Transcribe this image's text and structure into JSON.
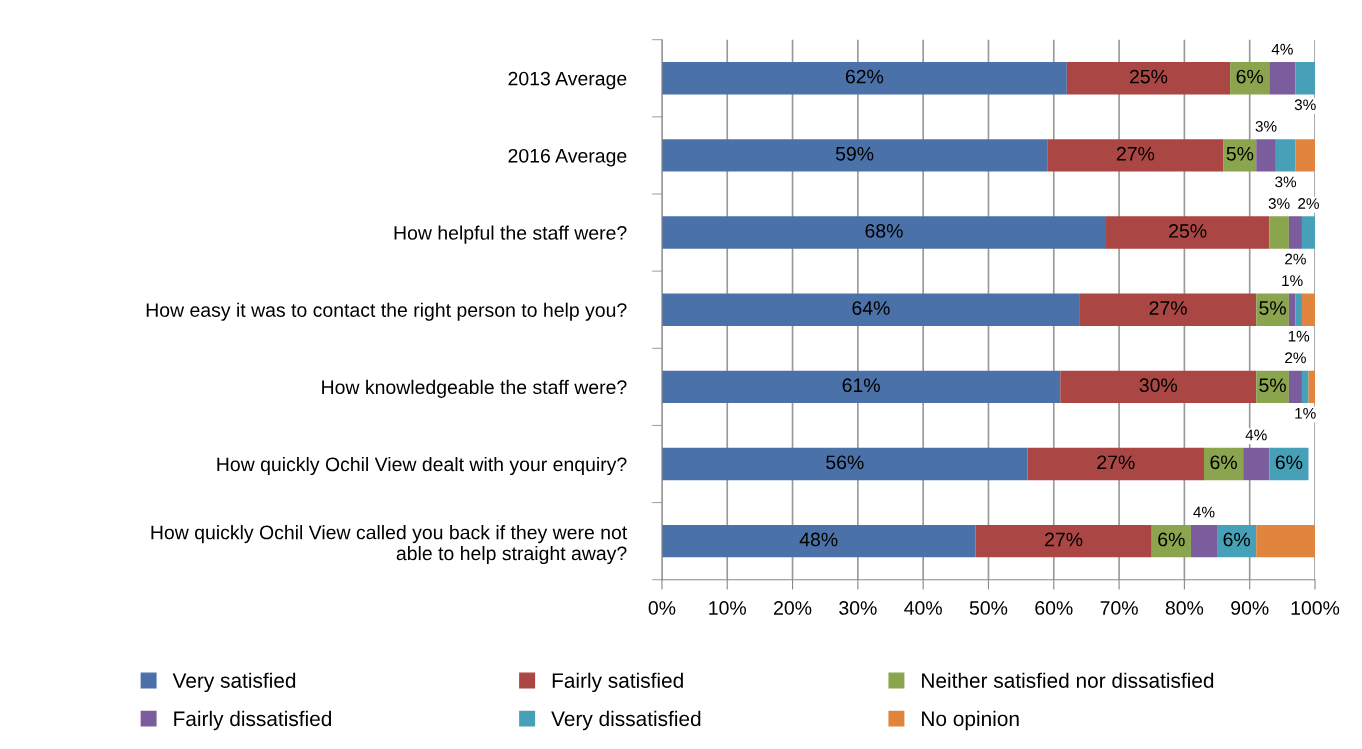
{
  "chart_data": {
    "type": "bar",
    "orientation": "horizontal",
    "stacked": true,
    "categories": [
      "2013 Average",
      "2016 Average",
      "How helpful the staff were?",
      "How easy it was to contact the right person to help you?",
      "How knowledgeable the staff were?",
      "How quickly Ochil View dealt with your enquiry?",
      "How quickly Ochil View called you back if they were not\nable to help straight away?"
    ],
    "series": [
      {
        "name": "Very satisfied",
        "color": "#4a72a8",
        "values": [
          62,
          59,
          68,
          64,
          61,
          56,
          48
        ],
        "value_labels": [
          "62%",
          "59%",
          "68%",
          "64%",
          "61%",
          "56%",
          "48%"
        ]
      },
      {
        "name": "Fairly satisfied",
        "color": "#aa4644",
        "values": [
          25,
          27,
          25,
          27,
          30,
          27,
          27
        ],
        "value_labels": [
          "25%",
          "27%",
          "25%",
          "27%",
          "30%",
          "27%",
          "27%"
        ]
      },
      {
        "name": "Neither satisfied nor dissatisfied",
        "color": "#8ba54f",
        "values": [
          6,
          5,
          3,
          5,
          5,
          6,
          6
        ],
        "value_labels": [
          "6%",
          "5%",
          "3%",
          "5%",
          "5%",
          "6%",
          "6%"
        ]
      },
      {
        "name": "Fairly dissatisfied",
        "color": "#7b5c9c",
        "values": [
          4,
          3,
          2,
          1,
          2,
          4,
          4
        ],
        "value_labels": [
          "4%",
          "3%",
          "2%",
          "1%",
          "2%",
          "4%",
          "4%"
        ]
      },
      {
        "name": "Very dissatisfied",
        "color": "#46a0b8",
        "values": [
          3,
          3,
          2,
          1,
          1,
          6,
          6
        ],
        "value_labels": [
          "3%",
          "3%",
          "2%",
          "1%",
          "1%",
          "6%",
          "6%"
        ]
      },
      {
        "name": "No opinion",
        "color": "#e0843e",
        "values": [
          null,
          3,
          null,
          2,
          1,
          null,
          9
        ],
        "value_labels": [
          null,
          null,
          null,
          null,
          null,
          null,
          null
        ]
      }
    ],
    "xlim": [
      0,
      100
    ],
    "xticks": [
      {
        "value": 0,
        "label": "0%"
      },
      {
        "value": 10,
        "label": "10%"
      },
      {
        "value": 20,
        "label": "20%"
      },
      {
        "value": 30,
        "label": "30%"
      },
      {
        "value": 40,
        "label": "40%"
      },
      {
        "value": 50,
        "label": "50%"
      },
      {
        "value": 60,
        "label": "60%"
      },
      {
        "value": 70,
        "label": "70%"
      },
      {
        "value": 80,
        "label": "80%"
      },
      {
        "value": 90,
        "label": "90%"
      },
      {
        "value": 100,
        "label": "100%"
      }
    ],
    "grid": "x",
    "legend": "bottom"
  }
}
